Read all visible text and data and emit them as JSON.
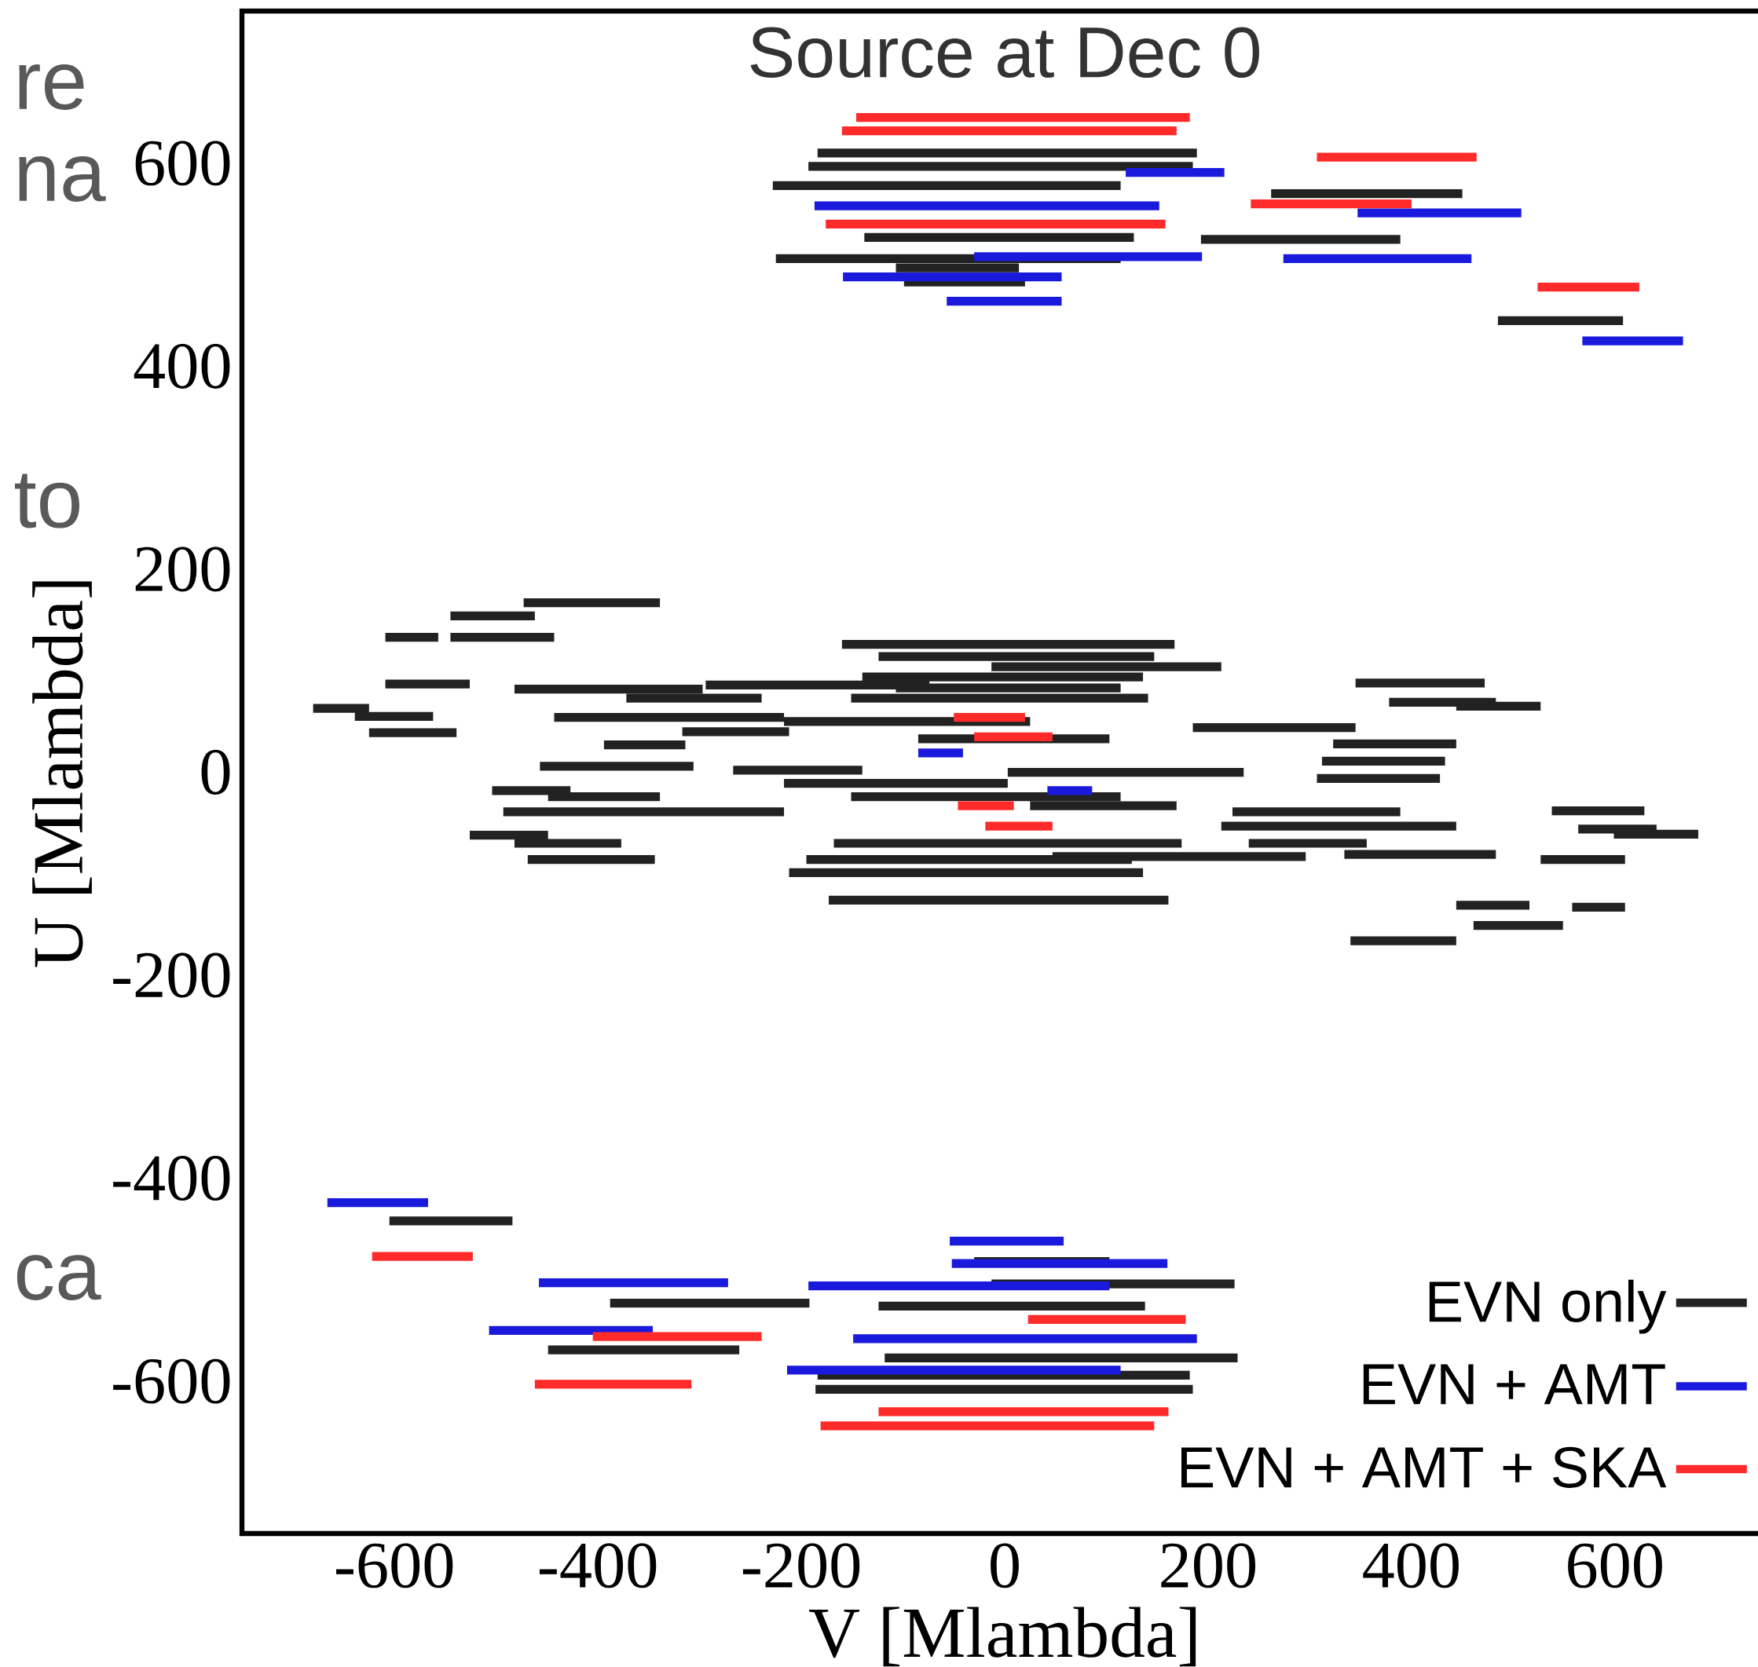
{
  "chart_data": {
    "type": "line",
    "title": "Source at Dec 0",
    "xlabel": "V [Mlambda]",
    "ylabel": "U [Mlambda]",
    "xlim": [
      -750,
      750
    ],
    "ylim": [
      -750,
      750
    ],
    "xticks": [
      -600,
      -400,
      -200,
      0,
      200,
      400,
      600
    ],
    "yticks": [
      -600,
      -400,
      -200,
      0,
      200,
      400,
      600
    ],
    "grid": false,
    "legend": "bottom right",
    "marker": "none",
    "line_style": "solid",
    "annotations": [
      "re",
      "na",
      "to",
      "ca"
    ],
    "series": [
      {
        "name": "EVN only",
        "color": "#222222",
        "x": [
          -184,
          189,
          null,
          -193,
          185,
          null,
          -228,
          114,
          null,
          262,
          450,
          null,
          -138,
          127,
          null,
          193,
          389,
          null,
          -225,
          114,
          null,
          -107,
          14,
          null,
          -99,
          20,
          null,
          485,
          608,
          null,
          -186,
          185,
          null,
          -184,
          182,
          null,
          -118,
          229,
          null,
          -124,
          138,
          null,
          -388,
          -192,
          null,
          -13,
          226,
          null,
          -30,
          103,
          null,
          -605,
          -484,
          null,
          -449,
          -261,
          null,
          -680,
          -625,
          null,
          -639,
          -562,
          null,
          -625,
          -539,
          null,
          -609,
          -557,
          null,
          -545,
          -443,
          null,
          -545,
          -462,
          null,
          -473,
          -339,
          null,
          -609,
          -526,
          null,
          -482,
          -297,
          null,
          -372,
          -239,
          null,
          -294,
          -74,
          null,
          -160,
          167,
          null,
          -124,
          147,
          null,
          -13,
          213,
          null,
          -140,
          136,
          null,
          -107,
          114,
          null,
          -151,
          141,
          null,
          -443,
          -217,
          null,
          -394,
          -314,
          null,
          -317,
          -212,
          null,
          -217,
          25,
          null,
          -457,
          -306,
          null,
          -267,
          -140,
          null,
          -504,
          -427,
          null,
          -449,
          -339,
          null,
          -217,
          3,
          null,
          -493,
          -217,
          null,
          -151,
          114,
          null,
          -526,
          -449,
          null,
          -482,
          -377,
          null,
          -469,
          -344,
          null,
          -212,
          136,
          null,
          -173,
          161,
          null,
          -168,
          174,
          null,
          -195,
          125,
          null,
          185,
          345,
          null,
          323,
          444,
          null,
          312,
          433,
          null,
          307,
          428,
          null,
          345,
          472,
          null,
          378,
          483,
          null,
          444,
          527,
          null,
          224,
          389,
          null,
          240,
          356,
          null,
          213,
          444,
          null,
          334,
          483,
          null,
          538,
          629,
          null,
          564,
          641,
          null,
          599,
          682,
          null,
          527,
          610,
          null,
          444,
          516,
          null,
          461,
          549,
          null,
          558,
          610,
          null,
          340,
          444,
          null,
          47,
          296,
          null,
          3,
          235,
          null,
          25,
          169,
          null,
          -85,
          103
        ],
        "values": [
          610,
          610,
          null,
          597,
          597,
          null,
          578,
          578,
          null,
          570,
          570,
          null,
          527,
          527,
          null,
          525,
          525,
          null,
          506,
          506,
          null,
          497,
          497,
          null,
          483,
          483,
          null,
          445,
          445,
          null,
          -608,
          -608,
          null,
          -594,
          -594,
          null,
          -577,
          -577,
          null,
          -526,
          -526,
          null,
          -523,
          -523,
          null,
          -504,
          -504,
          null,
          -482,
          -482,
          null,
          -442,
          -442,
          null,
          -569,
          -569,
          null,
          63,
          63,
          null,
          55,
          55,
          null,
          39,
          39,
          null,
          133,
          133,
          null,
          133,
          133,
          null,
          154,
          154,
          null,
          167,
          167,
          null,
          87,
          87,
          null,
          82,
          82,
          null,
          73,
          73,
          null,
          86,
          86,
          null,
          126,
          126,
          null,
          114,
          114,
          null,
          104,
          104,
          null,
          94,
          94,
          null,
          83,
          83,
          null,
          73,
          73,
          null,
          54,
          54,
          null,
          27,
          27,
          null,
          40,
          40,
          null,
          50,
          50,
          null,
          6,
          6,
          null,
          2,
          2,
          null,
          -18,
          -18,
          null,
          -24,
          -24,
          null,
          -11,
          -11,
          null,
          -39,
          -39,
          null,
          -24,
          -24,
          null,
          -62,
          -62,
          null,
          -70,
          -70,
          null,
          -86,
          -86,
          null,
          -99,
          -99,
          null,
          -126,
          -126,
          null,
          -70,
          -70,
          null,
          -86,
          -86,
          null,
          44,
          44,
          null,
          28,
          28,
          null,
          11,
          11,
          null,
          -6,
          -6,
          null,
          88,
          88,
          null,
          69,
          69,
          null,
          65,
          65,
          null,
          -39,
          -39,
          null,
          -70,
          -70,
          null,
          -53,
          -53,
          null,
          -81,
          -81,
          null,
          -38,
          -38,
          null,
          -56,
          -56,
          null,
          -61,
          -61,
          null,
          -86,
          -86,
          null,
          -131,
          -131,
          null,
          -151,
          -151,
          null,
          -133,
          -133,
          null,
          -166,
          -166,
          null,
          -83,
          -83,
          null,
          0,
          0,
          null,
          -33,
          -33,
          null,
          33,
          33
        ]
      },
      {
        "name": "EVN + AMT",
        "color": "#1a1adc",
        "x": [
          119,
          216,
          null,
          -187,
          152,
          null,
          347,
          508,
          null,
          -30,
          194,
          null,
          274,
          459,
          null,
          -159,
          56,
          null,
          -57,
          56,
          null,
          568,
          667,
          null,
          -85,
          -41,
          null,
          42,
          86,
          null,
          -54,
          58,
          null,
          -52,
          160,
          null,
          -193,
          103,
          null,
          -149,
          189,
          null,
          -214,
          114,
          null,
          -666,
          -567,
          null,
          -458,
          -272,
          null,
          -507,
          -346
        ],
        "values": [
          591,
          591,
          null,
          558,
          558,
          null,
          551,
          551,
          null,
          508,
          508,
          null,
          506,
          506,
          null,
          488,
          488,
          null,
          464,
          464,
          null,
          425,
          425,
          null,
          19,
          19,
          null,
          -18,
          -18,
          null,
          -462,
          -462,
          null,
          -484,
          -484,
          null,
          -506,
          -506,
          null,
          -558,
          -558,
          null,
          -589,
          -589,
          null,
          -424,
          -424,
          null,
          -503,
          -503,
          null,
          -550,
          -550
        ]
      },
      {
        "name": "EVN + AMT + SKA",
        "color": "#ff2a2a",
        "x": [
          -146,
          182,
          null,
          -160,
          169,
          null,
          -176,
          158,
          null,
          307,
          464,
          null,
          242,
          400,
          null,
          524,
          624,
          null,
          -50,
          20,
          null,
          -30,
          47,
          null,
          -46,
          9,
          null,
          -19,
          47,
          null,
          -181,
          147,
          null,
          -124,
          161,
          null,
          23,
          178,
          null,
          -622,
          -523,
          null,
          -462,
          -308,
          null,
          -405,
          -239
        ],
        "values": [
          645,
          645,
          null,
          632,
          632,
          null,
          540,
          540,
          null,
          606,
          606,
          null,
          560,
          560,
          null,
          478,
          478,
          null,
          54,
          54,
          null,
          35,
          35,
          null,
          -33,
          -33,
          null,
          -53,
          -53,
          null,
          -644,
          -644,
          null,
          -630,
          -630,
          null,
          -539,
          -539,
          null,
          -477,
          -477,
          null,
          -603,
          -603,
          null,
          -556,
          -556
        ]
      }
    ]
  }
}
